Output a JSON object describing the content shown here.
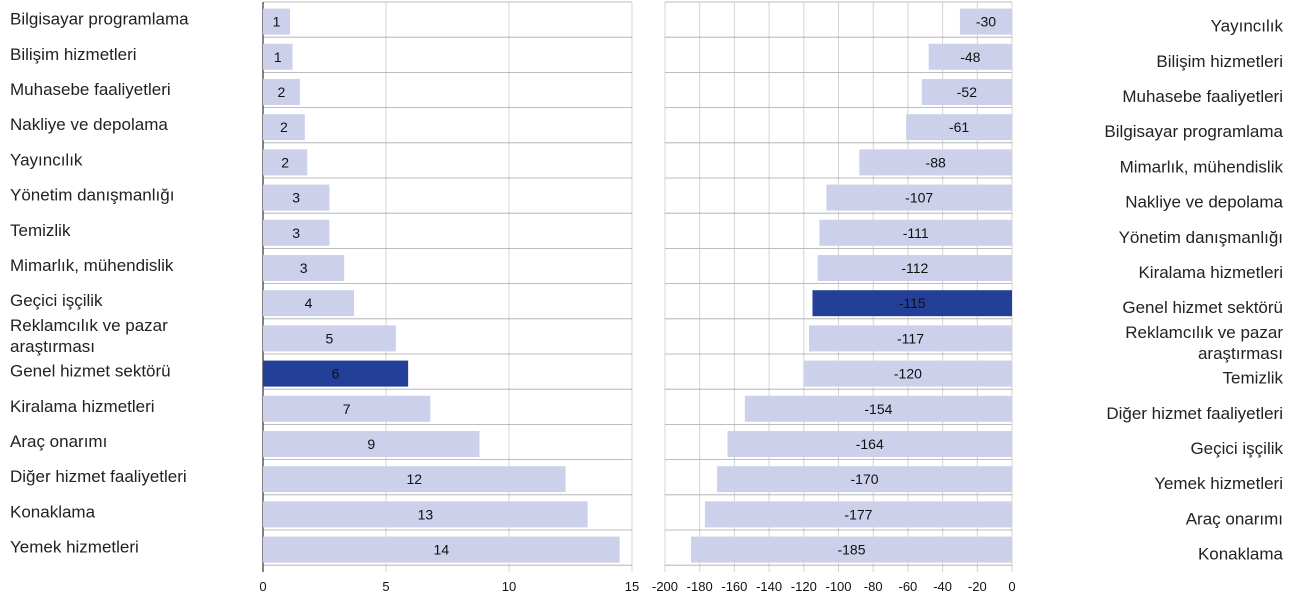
{
  "chart_data": [
    {
      "type": "bar",
      "orientation": "horizontal",
      "title": "",
      "xlabel": "",
      "ylabel": "",
      "xlim": [
        0,
        15
      ],
      "xticks": [
        "0",
        "5",
        "10",
        "15"
      ],
      "grid": true,
      "legend": "none",
      "categories": [
        "Bilgisayar programlama",
        "Bilişim hizmetleri",
        "Muhasebe faaliyetleri",
        "Nakliye ve depolama",
        "Yayıncılık",
        "Yönetim danışmanlığı",
        "Temizlik",
        "Mimarlık, mühendislik",
        "Geçici işçilik",
        "Reklamcılık ve pazar araştırması",
        "Genel hizmet sektörü",
        "Kiralama hizmetleri",
        "Araç onarımı",
        "Diğer hizmet faaliyetleri",
        "Konaklama",
        "Yemek hizmetleri"
      ],
      "category_lines": [
        [
          "Bilgisayar programlama"
        ],
        [
          "Bilişim hizmetleri"
        ],
        [
          "Muhasebe faaliyetleri"
        ],
        [
          "Nakliye ve depolama"
        ],
        [
          "Yayıncılık"
        ],
        [
          "Yönetim danışmanlığı"
        ],
        [
          "Temizlik"
        ],
        [
          "Mimarlık, mühendislik"
        ],
        [
          "Geçici işçilik"
        ],
        [
          "Reklamcılık ve pazar",
          "araştırması"
        ],
        [
          "Genel hizmet sektörü"
        ],
        [
          "Kiralama hizmetleri"
        ],
        [
          "Araç onarımı"
        ],
        [
          "Diğer hizmet faaliyetleri"
        ],
        [
          "Konaklama"
        ],
        [
          "Yemek hizmetleri"
        ]
      ],
      "values": [
        1.1,
        1.2,
        1.5,
        1.7,
        1.8,
        2.7,
        2.7,
        3.3,
        3.7,
        5.4,
        5.9,
        6.8,
        8.8,
        12.3,
        13.2,
        14.5
      ],
      "labels": [
        "1",
        "1",
        "2",
        "2",
        "2",
        "3",
        "3",
        "3",
        "4",
        "5",
        "6",
        "7",
        "9",
        "12",
        "13",
        "14"
      ],
      "highlight": "Genel hizmet sektörü"
    },
    {
      "type": "bar",
      "orientation": "horizontal",
      "title": "",
      "xlabel": "",
      "ylabel": "",
      "xlim": [
        -200,
        0
      ],
      "xticks": [
        "-200",
        "-180",
        "-160",
        "-140",
        "-120",
        "-100",
        "-80",
        "-60",
        "-40",
        "-20",
        "0"
      ],
      "grid": true,
      "legend": "none",
      "categories": [
        "Yayıncılık",
        "Bilişim hizmetleri",
        "Muhasebe faaliyetleri",
        "Bilgisayar programlama",
        "Mimarlık, mühendislik",
        "Nakliye ve depolama",
        "Yönetim danışmanlığı",
        "Kiralama hizmetleri",
        "Genel hizmet sektörü",
        "Reklamcılık ve pazar araştırması",
        "Temizlik",
        "Diğer hizmet faaliyetleri",
        "Geçici işçilik",
        "Yemek hizmetleri",
        "Araç onarımı",
        "Konaklama"
      ],
      "category_lines": [
        [
          "Yayıncılık"
        ],
        [
          "Bilişim hizmetleri"
        ],
        [
          "Muhasebe faaliyetleri"
        ],
        [
          "Bilgisayar programlama"
        ],
        [
          "Mimarlık, mühendislik"
        ],
        [
          "Nakliye ve depolama"
        ],
        [
          "Yönetim danışmanlığı"
        ],
        [
          "Kiralama hizmetleri"
        ],
        [
          "Genel hizmet sektörü"
        ],
        [
          "Reklamcılık ve pazar",
          "araştırması"
        ],
        [
          "Temizlik"
        ],
        [
          "Diğer hizmet faaliyetleri"
        ],
        [
          "Geçici işçilik"
        ],
        [
          "Yemek hizmetleri"
        ],
        [
          "Araç onarımı"
        ],
        [
          "Konaklama"
        ]
      ],
      "values": [
        -30,
        -48,
        -52,
        -61,
        -88,
        -107,
        -111,
        -112,
        -115,
        -117,
        -120,
        -154,
        -164,
        -170,
        -177,
        -185
      ],
      "labels": [
        "-30",
        "-48",
        "-52",
        "-61",
        "-88",
        "-107",
        "-111",
        "-112",
        "-115",
        "-117",
        "-120",
        "-154",
        "-164",
        "-170",
        "-177",
        "-185"
      ],
      "highlight": "Genel hizmet sektörü"
    }
  ],
  "colors": {
    "bar": "#cdd0ea",
    "bar_highlight": "#233f97",
    "grid": "#d4d4d4",
    "separator": "#a9a9a9",
    "axis": "#333333",
    "text": "#222222"
  }
}
